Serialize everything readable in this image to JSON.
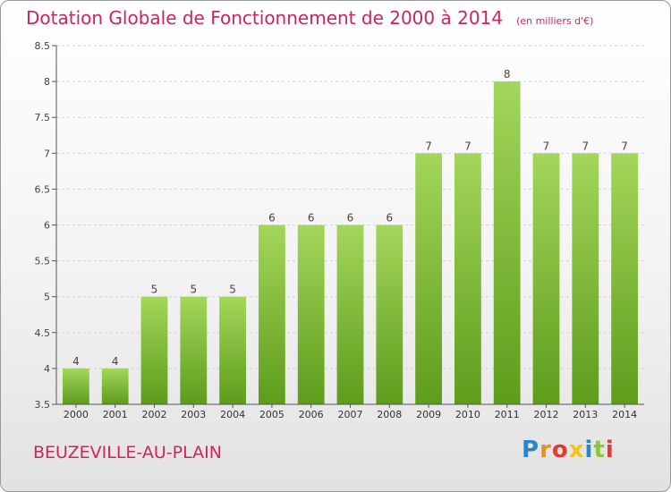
{
  "chart_data": {
    "type": "bar",
    "title": "Dotation Globale de Fonctionnement de 2000 à 2014",
    "units_label": "(en milliers d'€)",
    "categories": [
      "2000",
      "2001",
      "2002",
      "2003",
      "2004",
      "2005",
      "2006",
      "2007",
      "2008",
      "2009",
      "2010",
      "2011",
      "2012",
      "2013",
      "2014"
    ],
    "values": [
      4,
      4,
      5,
      5,
      5,
      6,
      6,
      6,
      6,
      7,
      7,
      8,
      7,
      7,
      7
    ],
    "value_labels": [
      "4",
      "4",
      "5",
      "5",
      "5",
      "6",
      "6",
      "6",
      "6",
      "7",
      "7",
      "8",
      "7",
      "7",
      "7"
    ],
    "ylim": [
      3.5,
      8.5
    ],
    "yticks": [
      3.5,
      4,
      4.5,
      5,
      5.5,
      6,
      6.5,
      7,
      7.5,
      8,
      8.5
    ],
    "ytick_labels": [
      "3.5",
      "4",
      "4.5",
      "5",
      "5.5",
      "6",
      "6.5",
      "7",
      "7.5",
      "8",
      "8.5"
    ],
    "xlabel": "",
    "ylabel": "",
    "grid": true,
    "bar_color": "#8cc63f",
    "accent_color": "#d0245c"
  },
  "footer": {
    "commune": "BEUZEVILLE-AU-PLAIN",
    "logo_text": "Proxiti",
    "logo_colors": [
      "#2b86c9",
      "#f28c1a",
      "#e63a2e",
      "#f6c21c",
      "#2b86c9",
      "#8cc63f",
      "#e63a2e"
    ]
  }
}
